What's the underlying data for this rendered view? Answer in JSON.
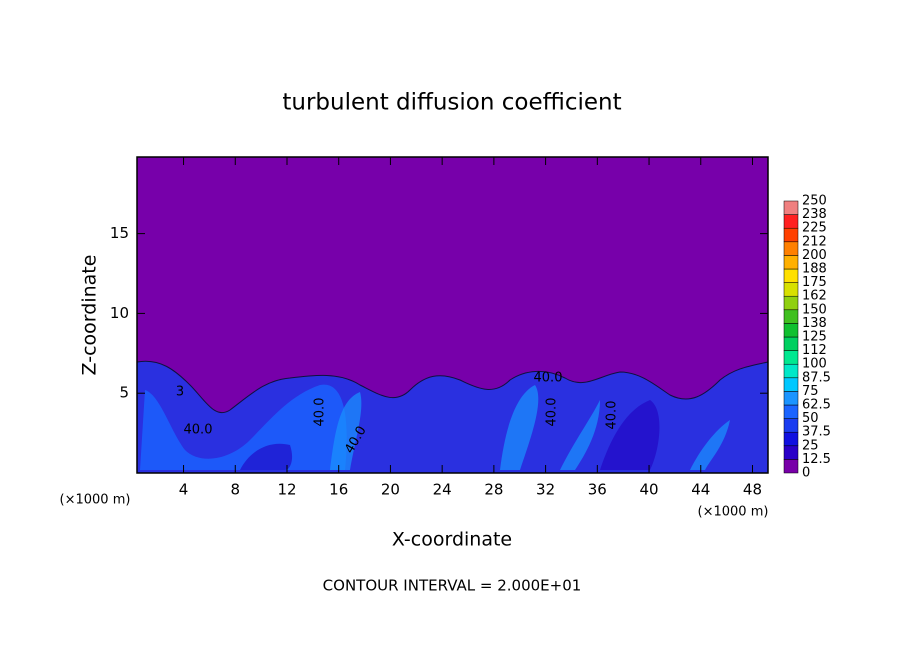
{
  "chart_data": {
    "type": "contour",
    "title": "turbulent diffusion coefficient",
    "xlabel": "X-coordinate",
    "ylabel": "Z-coordinate",
    "x_unit_labels": [
      "(×1000 m)",
      "(×1000 m)"
    ],
    "footer": "CONTOUR INTERVAL = 2.000E+01",
    "contour_labels": [
      "40.0",
      "40.0",
      "40.0",
      "40.0",
      "40.0",
      "40.0",
      "3"
    ],
    "xlim": [
      0.4,
      49.2
    ],
    "ylim": [
      0,
      19.8
    ],
    "xticks": [
      4,
      8,
      12,
      16,
      20,
      24,
      28,
      32,
      36,
      40,
      44,
      48
    ],
    "yticks": [
      5,
      10,
      15
    ],
    "colorbar": {
      "levels": [
        0,
        12.5,
        25,
        37.5,
        50,
        62.5,
        75,
        87.5,
        100,
        112,
        125,
        138,
        150,
        162,
        175,
        188,
        200,
        212,
        225,
        238,
        250
      ],
      "colors": [
        "#7800a8",
        "#2a00c8",
        "#1010e0",
        "#1a3cf0",
        "#1a64ff",
        "#1a94ff",
        "#00c8ff",
        "#00e8c8",
        "#00e890",
        "#00d060",
        "#10c030",
        "#40c020",
        "#90d010",
        "#d8e000",
        "#ffe000",
        "#ffb000",
        "#ff8000",
        "#ff4000",
        "#ff2020",
        "#f08080"
      ]
    }
  }
}
